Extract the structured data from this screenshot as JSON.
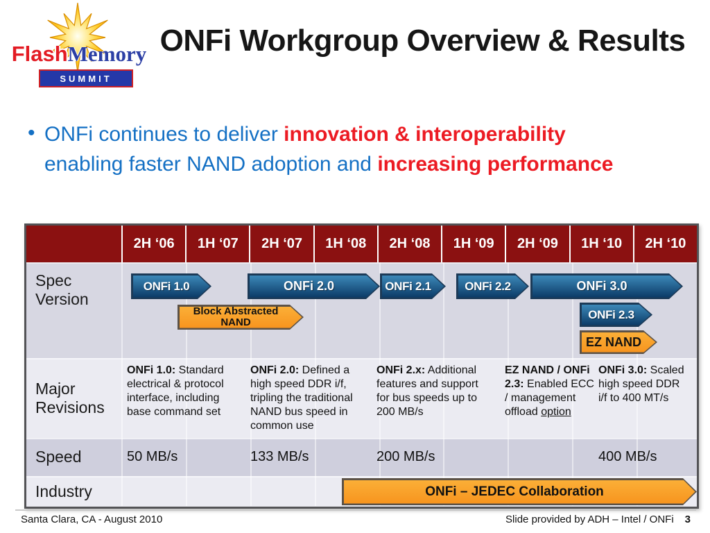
{
  "logo": {
    "flash": "Flash",
    "memory": "Memory",
    "summit": "SUMMIT"
  },
  "title": "ONFi Workgroup Overview & Results",
  "bullet": {
    "seg1": "ONFi continues to deliver ",
    "seg2": "innovation & interoperability",
    "seg3": "enabling faster NAND adoption and ",
    "seg4": "increasing performance"
  },
  "roadmap": {
    "row_labels": {
      "spec": "Spec Version",
      "major": "Major Revisions",
      "speed": "Speed",
      "industry": "Industry"
    },
    "periods": [
      "2H ‘06",
      "1H ‘07",
      "2H ‘07",
      "1H ‘08",
      "2H ‘08",
      "1H ‘09",
      "2H ‘09",
      "1H ‘10",
      "2H ‘10"
    ],
    "spec_arrows": [
      {
        "label": "ONFi 1.0",
        "style": "blue"
      },
      {
        "label": "ONFi 2.0",
        "style": "blue"
      },
      {
        "label": "Block Abstracted NAND",
        "style": "orange"
      },
      {
        "label": "ONFi 2.1",
        "style": "blue"
      },
      {
        "label": "ONFi 2.2",
        "style": "blue"
      },
      {
        "label": "ONFi 3.0",
        "style": "blue"
      },
      {
        "label": "ONFi 2.3",
        "style": "blue"
      },
      {
        "label": "EZ NAND",
        "style": "orange"
      }
    ],
    "revisions": [
      {
        "bold": "ONFi 1.0:",
        "text": " Standard electrical & protocol interface, including base command set"
      },
      {
        "bold": "ONFi 2.0:",
        "text": " Defined a high speed DDR i/f, tripling the traditional NAND bus speed in common use"
      },
      {
        "bold": "ONFi 2.x:",
        "text": " Additional features and support for bus speeds up to 200 MB/s"
      },
      {
        "bold": "EZ NAND / ONFi 2.3:",
        "text": " Enabled ECC / management offload ",
        "underline": "option"
      },
      {
        "bold": "ONFi 3.0:",
        "text": " Scaled high speed DDR i/f to 400 MT/s"
      }
    ],
    "speeds": [
      "50 MB/s",
      "133 MB/s",
      "200 MB/s",
      "400 MB/s"
    ],
    "industry_arrow": {
      "label": "ONFi – JEDEC Collaboration",
      "style": "orange"
    }
  },
  "footer": {
    "left": "Santa Clara, CA -  August 2010",
    "right": "Slide provided by ADH – Intel / ONFi",
    "page": "3"
  },
  "colors": {
    "header_red": "#8B1111",
    "row_light": "#EBEBF2",
    "row_mid": "#D7D7E2",
    "row_dark": "#CFCFDD",
    "arrow_blue_top": "#3C88B8",
    "arrow_blue_bottom": "#0B3A66",
    "arrow_blue_border": "#1C3A57",
    "arrow_orange": "#F9A01B",
    "arrow_orange_border": "#5C5247",
    "bullet_blue": "#1470C4",
    "accent_red": "#EC1B23",
    "logo_blue": "#2438A8",
    "logo_red": "#E31B23"
  }
}
